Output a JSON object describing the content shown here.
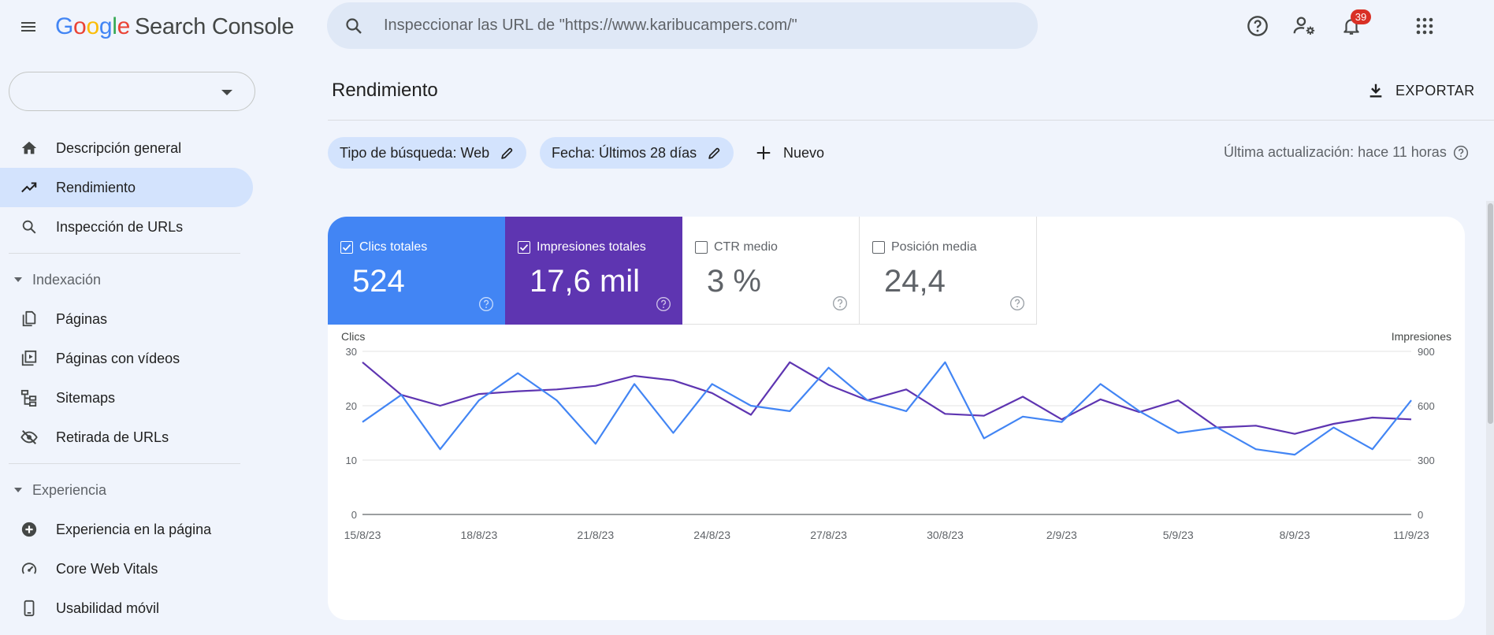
{
  "header": {
    "logo_brand": "Google",
    "logo_product": "Search Console",
    "search_placeholder": "Inspeccionar las URL de \"https://www.karibucampers.com/\"",
    "notification_count": "39"
  },
  "property_selector": {
    "value": ""
  },
  "sidebar": {
    "items_top": [
      {
        "label": "Descripción general",
        "icon": "home-icon",
        "active": false
      },
      {
        "label": "Rendimiento",
        "icon": "trending-up-icon",
        "active": true
      },
      {
        "label": "Inspección de URLs",
        "icon": "search-icon",
        "active": false
      }
    ],
    "section_indexing": {
      "label": "Indexación",
      "items": [
        {
          "label": "Páginas",
          "icon": "pages-icon"
        },
        {
          "label": "Páginas con vídeos",
          "icon": "video-pages-icon"
        },
        {
          "label": "Sitemaps",
          "icon": "sitemap-icon"
        },
        {
          "label": "Retirada de URLs",
          "icon": "eye-off-icon"
        }
      ]
    },
    "section_experience": {
      "label": "Experiencia",
      "items": [
        {
          "label": "Experiencia en la página",
          "icon": "plus-circle-icon"
        },
        {
          "label": "Core Web Vitals",
          "icon": "speed-gauge-icon"
        },
        {
          "label": "Usabilidad móvil",
          "icon": "mobile-icon"
        }
      ]
    }
  },
  "main": {
    "title": "Rendimiento",
    "export_label": "EXPORTAR",
    "filters": [
      {
        "label": "Tipo de búsqueda: Web"
      },
      {
        "label": "Fecha: Últimos 28 días"
      }
    ],
    "new_filter_label": "Nuevo",
    "last_update": "Última actualización: hace 11 horas"
  },
  "metrics": [
    {
      "label": "Clics totales",
      "value": "524",
      "checked": true,
      "color": "#4285f4"
    },
    {
      "label": "Impresiones totales",
      "value": "17,6 mil",
      "checked": true,
      "color": "#5e35b1"
    },
    {
      "label": "CTR medio",
      "value": "3 %",
      "checked": false
    },
    {
      "label": "Posición media",
      "value": "24,4",
      "checked": false
    }
  ],
  "chart_data": {
    "type": "line",
    "left_axis_label": "Clics",
    "right_axis_label": "Impresiones",
    "left_ticks": [
      "0",
      "10",
      "20",
      "30"
    ],
    "right_ticks": [
      "0",
      "300",
      "600",
      "900"
    ],
    "ylim_left": [
      0,
      30
    ],
    "ylim_right": [
      0,
      900
    ],
    "x_tick_labels": [
      "15/8/23",
      "18/8/23",
      "21/8/23",
      "24/8/23",
      "27/8/23",
      "30/8/23",
      "2/9/23",
      "5/9/23",
      "8/9/23",
      "11/9/23"
    ],
    "x": [
      "15/8/23",
      "16/8/23",
      "17/8/23",
      "18/8/23",
      "19/8/23",
      "20/8/23",
      "21/8/23",
      "22/8/23",
      "23/8/23",
      "24/8/23",
      "25/8/23",
      "26/8/23",
      "27/8/23",
      "28/8/23",
      "29/8/23",
      "30/8/23",
      "31/8/23",
      "1/9/23",
      "2/9/23",
      "3/9/23",
      "4/9/23",
      "5/9/23",
      "6/9/23",
      "7/9/23",
      "8/9/23",
      "9/9/23",
      "10/9/23",
      "11/9/23"
    ],
    "series": [
      {
        "name": "Clics",
        "axis": "left",
        "color": "#4285f4",
        "values": [
          17,
          22,
          12,
          21,
          26,
          21,
          13,
          24,
          15,
          24,
          20,
          19,
          27,
          21,
          19,
          28,
          14,
          18,
          17,
          24,
          19,
          15,
          16,
          12,
          11,
          16,
          12,
          21
        ]
      },
      {
        "name": "Impresiones",
        "axis": "right",
        "color": "#5e35b1",
        "values": [
          840,
          660,
          600,
          665,
          680,
          690,
          710,
          765,
          740,
          670,
          550,
          840,
          715,
          630,
          690,
          555,
          545,
          650,
          525,
          635,
          565,
          630,
          480,
          490,
          445,
          500,
          535,
          525
        ]
      }
    ],
    "grid": true
  }
}
